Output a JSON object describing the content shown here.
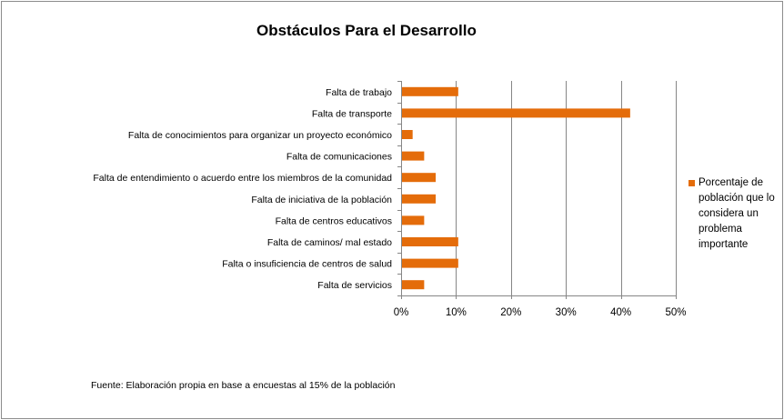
{
  "chart_data": {
    "type": "bar",
    "orientation": "horizontal",
    "title": "Obstáculos Para el Desarrollo",
    "categories": [
      "Falta de trabajo",
      "Falta de transporte",
      "Falta de conocimientos para organizar un proyecto económico",
      "Falta de comunicaciones",
      "Falta de entendimiento o acuerdo entre los miembros de la comunidad",
      "Falta de iniciativa de la población",
      "Falta de centros educativos",
      "Falta de caminos/ mal estado",
      "Falta o insuficiencia  de centros de salud",
      "Falta de servicios"
    ],
    "series": [
      {
        "name": "Porcentaje de población que lo considera un problema importante",
        "values": [
          10.4,
          41.7,
          2.1,
          4.2,
          6.3,
          6.3,
          4.2,
          10.4,
          10.4,
          4.2
        ],
        "color": "#E46C0A"
      }
    ],
    "xlim": [
      0,
      50
    ],
    "xticks": [
      0,
      10,
      20,
      30,
      40,
      50
    ],
    "tick_labels": [
      "0%",
      "10%",
      "20%",
      "30%",
      "40%",
      "50%"
    ],
    "xlabel": "",
    "ylabel": "",
    "grid": "vertical major gridlines",
    "legend_position": "right",
    "gridline_color": "#868686"
  },
  "footnote": "Fuente: Elaboración propia en base a encuestas  al 15% de la población"
}
